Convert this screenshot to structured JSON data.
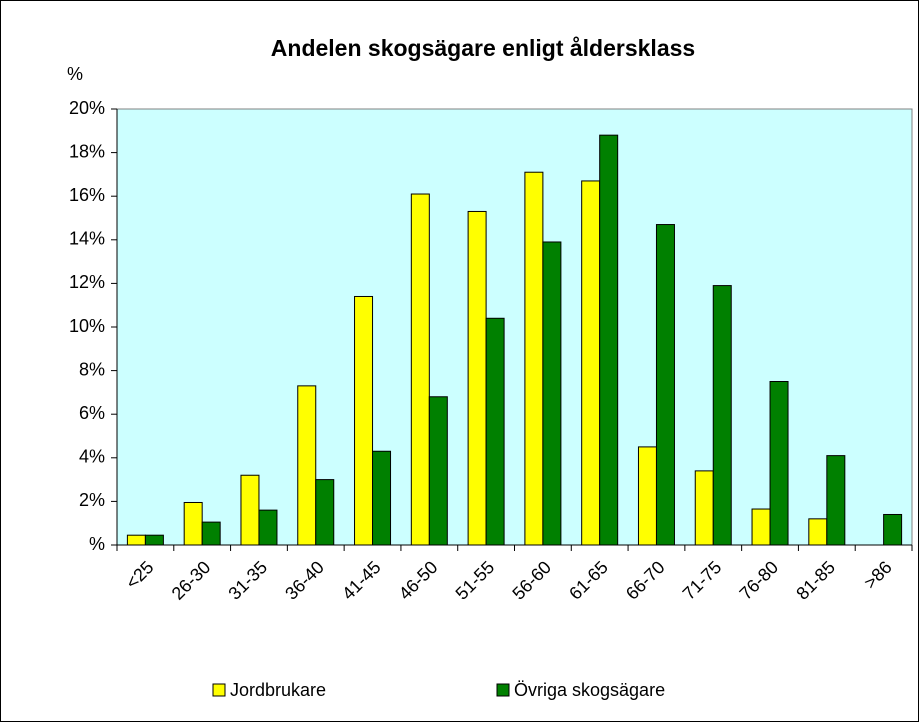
{
  "chart_data": {
    "type": "bar",
    "title": "Andelen skogsägare enligt åldersklass",
    "y_label": "%",
    "categories": [
      "<25",
      "26-30",
      "31-35",
      "36-40",
      "41-45",
      "46-50",
      "51-55",
      "56-60",
      "61-65",
      "66-70",
      "71-75",
      "76-80",
      "81-85",
      ">86"
    ],
    "series": [
      {
        "name": "Jordbrukare",
        "color": "#ffff00",
        "values": [
          0.45,
          1.95,
          3.2,
          7.3,
          11.4,
          16.1,
          15.3,
          17.1,
          16.7,
          4.5,
          3.4,
          1.65,
          1.2,
          0
        ]
      },
      {
        "name": "Övriga skogsägare",
        "color": "#008000",
        "values": [
          0.45,
          1.05,
          1.6,
          3.0,
          4.3,
          6.8,
          10.4,
          13.9,
          18.8,
          14.7,
          11.9,
          7.5,
          4.1,
          1.4
        ]
      }
    ],
    "ylim": [
      0,
      20
    ],
    "yticks": [
      {
        "value": 0,
        "label": "%"
      },
      {
        "value": 2,
        "label": "2%"
      },
      {
        "value": 4,
        "label": "4%"
      },
      {
        "value": 6,
        "label": "6%"
      },
      {
        "value": 8,
        "label": "8%"
      },
      {
        "value": 10,
        "label": "10%"
      },
      {
        "value": 12,
        "label": "12%"
      },
      {
        "value": 14,
        "label": "14%"
      },
      {
        "value": 16,
        "label": "16%"
      },
      {
        "value": 18,
        "label": "18%"
      },
      {
        "value": 20,
        "label": "20%"
      }
    ],
    "grid": false,
    "plot_background": "#ccffff",
    "legend": "bottom"
  }
}
